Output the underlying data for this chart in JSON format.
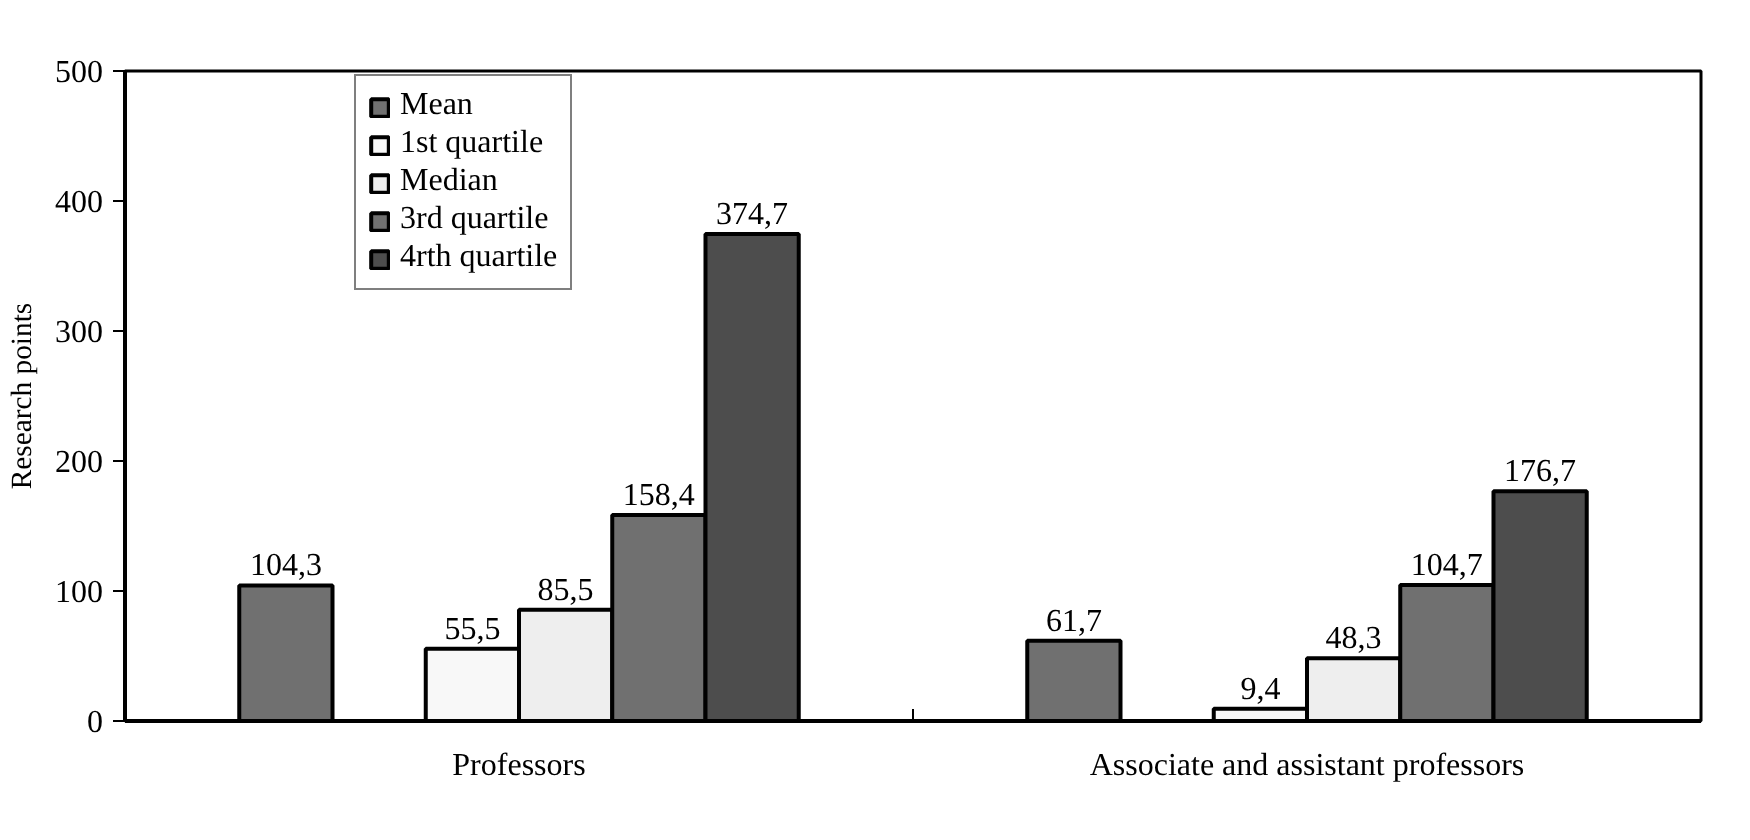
{
  "chart_data": {
    "type": "bar",
    "ylabel": "Research points",
    "categories": [
      "Professors",
      "Associate and assistant professors"
    ],
    "series": [
      {
        "name": "Mean",
        "color": "#707070",
        "values": [
          104.3,
          61.7
        ],
        "value_labels": [
          "104,3",
          "61,7"
        ]
      },
      {
        "name": "1st quartile",
        "color": "#f8f8f8",
        "values": [
          55.5,
          9.4
        ],
        "value_labels": [
          "55,5",
          "9,4"
        ]
      },
      {
        "name": "Median",
        "color": "#eeeeee",
        "values": [
          85.5,
          48.3
        ],
        "value_labels": [
          "85,5",
          "48,3"
        ]
      },
      {
        "name": "3rd quartile",
        "color": "#707070",
        "values": [
          158.4,
          104.7
        ],
        "value_labels": [
          "158,4",
          "104,7"
        ]
      },
      {
        "name": "4rth quartile",
        "color": "#4d4d4d",
        "values": [
          374.7,
          176.7
        ],
        "value_labels": [
          "374,7",
          "176,7"
        ]
      }
    ],
    "ylim": [
      0,
      500
    ],
    "yticks": [
      0,
      100,
      200,
      300,
      400,
      500
    ],
    "grid": false,
    "legend": "top left"
  }
}
